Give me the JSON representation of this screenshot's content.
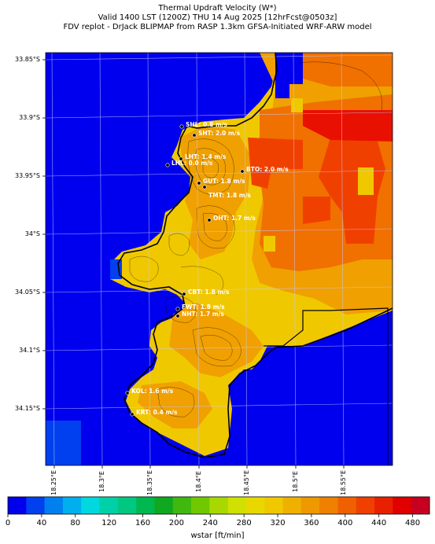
{
  "title": {
    "line1": "Thermal Updraft Velocity (W*)",
    "line2": "Valid 1400 LST (1200Z) THU 14 Aug 2025 [12hrFcst@0503z]",
    "line3": "FDV replot - DrJack BLIPMAP from RASP 1.3km GFSA-Initiated WRF-ARW model"
  },
  "axes": {
    "y_ticks": [
      "33.85°S",
      "33.9°S",
      "33.95°S",
      "34°S",
      "34.05°S",
      "34.1°S",
      "34.15°S"
    ],
    "x_ticks": [
      "18.25°E",
      "18.3°E",
      "18.35°E",
      "18.4°E",
      "18.45°E",
      "18.5°E",
      "18.55°E"
    ]
  },
  "stations": [
    {
      "label": "SHL: 0.8 m/s"
    },
    {
      "label": "SHT: 2.0 m/s"
    },
    {
      "label": "LHT: 1.4 m/s"
    },
    {
      "label": "LHL: 0.0 m/s"
    },
    {
      "label": "BTO: 2.0 m/s"
    },
    {
      "label": "GUT: 1.8 m/s"
    },
    {
      "label": "TMT: 1.8 m/s"
    },
    {
      "label": "OHT: 1.7 m/s"
    },
    {
      "label": "CBT: 1.8 m/s"
    },
    {
      "label": "FWT: 1.8 m/s"
    },
    {
      "label": "NHT: 1.7 m/s"
    },
    {
      "label": "KOL: 1.6 m/s"
    },
    {
      "label": "KRT: 0.4 m/s"
    }
  ],
  "colorbar": {
    "title": "wstar [ft/min]",
    "ticks": [
      "0",
      "40",
      "80",
      "120",
      "160",
      "200",
      "240",
      "280",
      "320",
      "360",
      "400",
      "440",
      "480"
    ],
    "colors": [
      "#0000ee",
      "#0040ee",
      "#0080ee",
      "#00b0ee",
      "#00d8e0",
      "#00d0a8",
      "#00c880",
      "#00b850",
      "#10a820",
      "#40b810",
      "#70c800",
      "#a8d800",
      "#d0e000",
      "#e8d800",
      "#f0c800",
      "#f0b000",
      "#f09800",
      "#f08000",
      "#f06000",
      "#f04000",
      "#e82000",
      "#e00000",
      "#c80020"
    ]
  },
  "colors": {
    "water": "#0000ee",
    "yellow": "#f0c800",
    "amber": "#f0a000",
    "orange": "#f07000",
    "red_orange": "#f04000",
    "red": "#e81000"
  }
}
